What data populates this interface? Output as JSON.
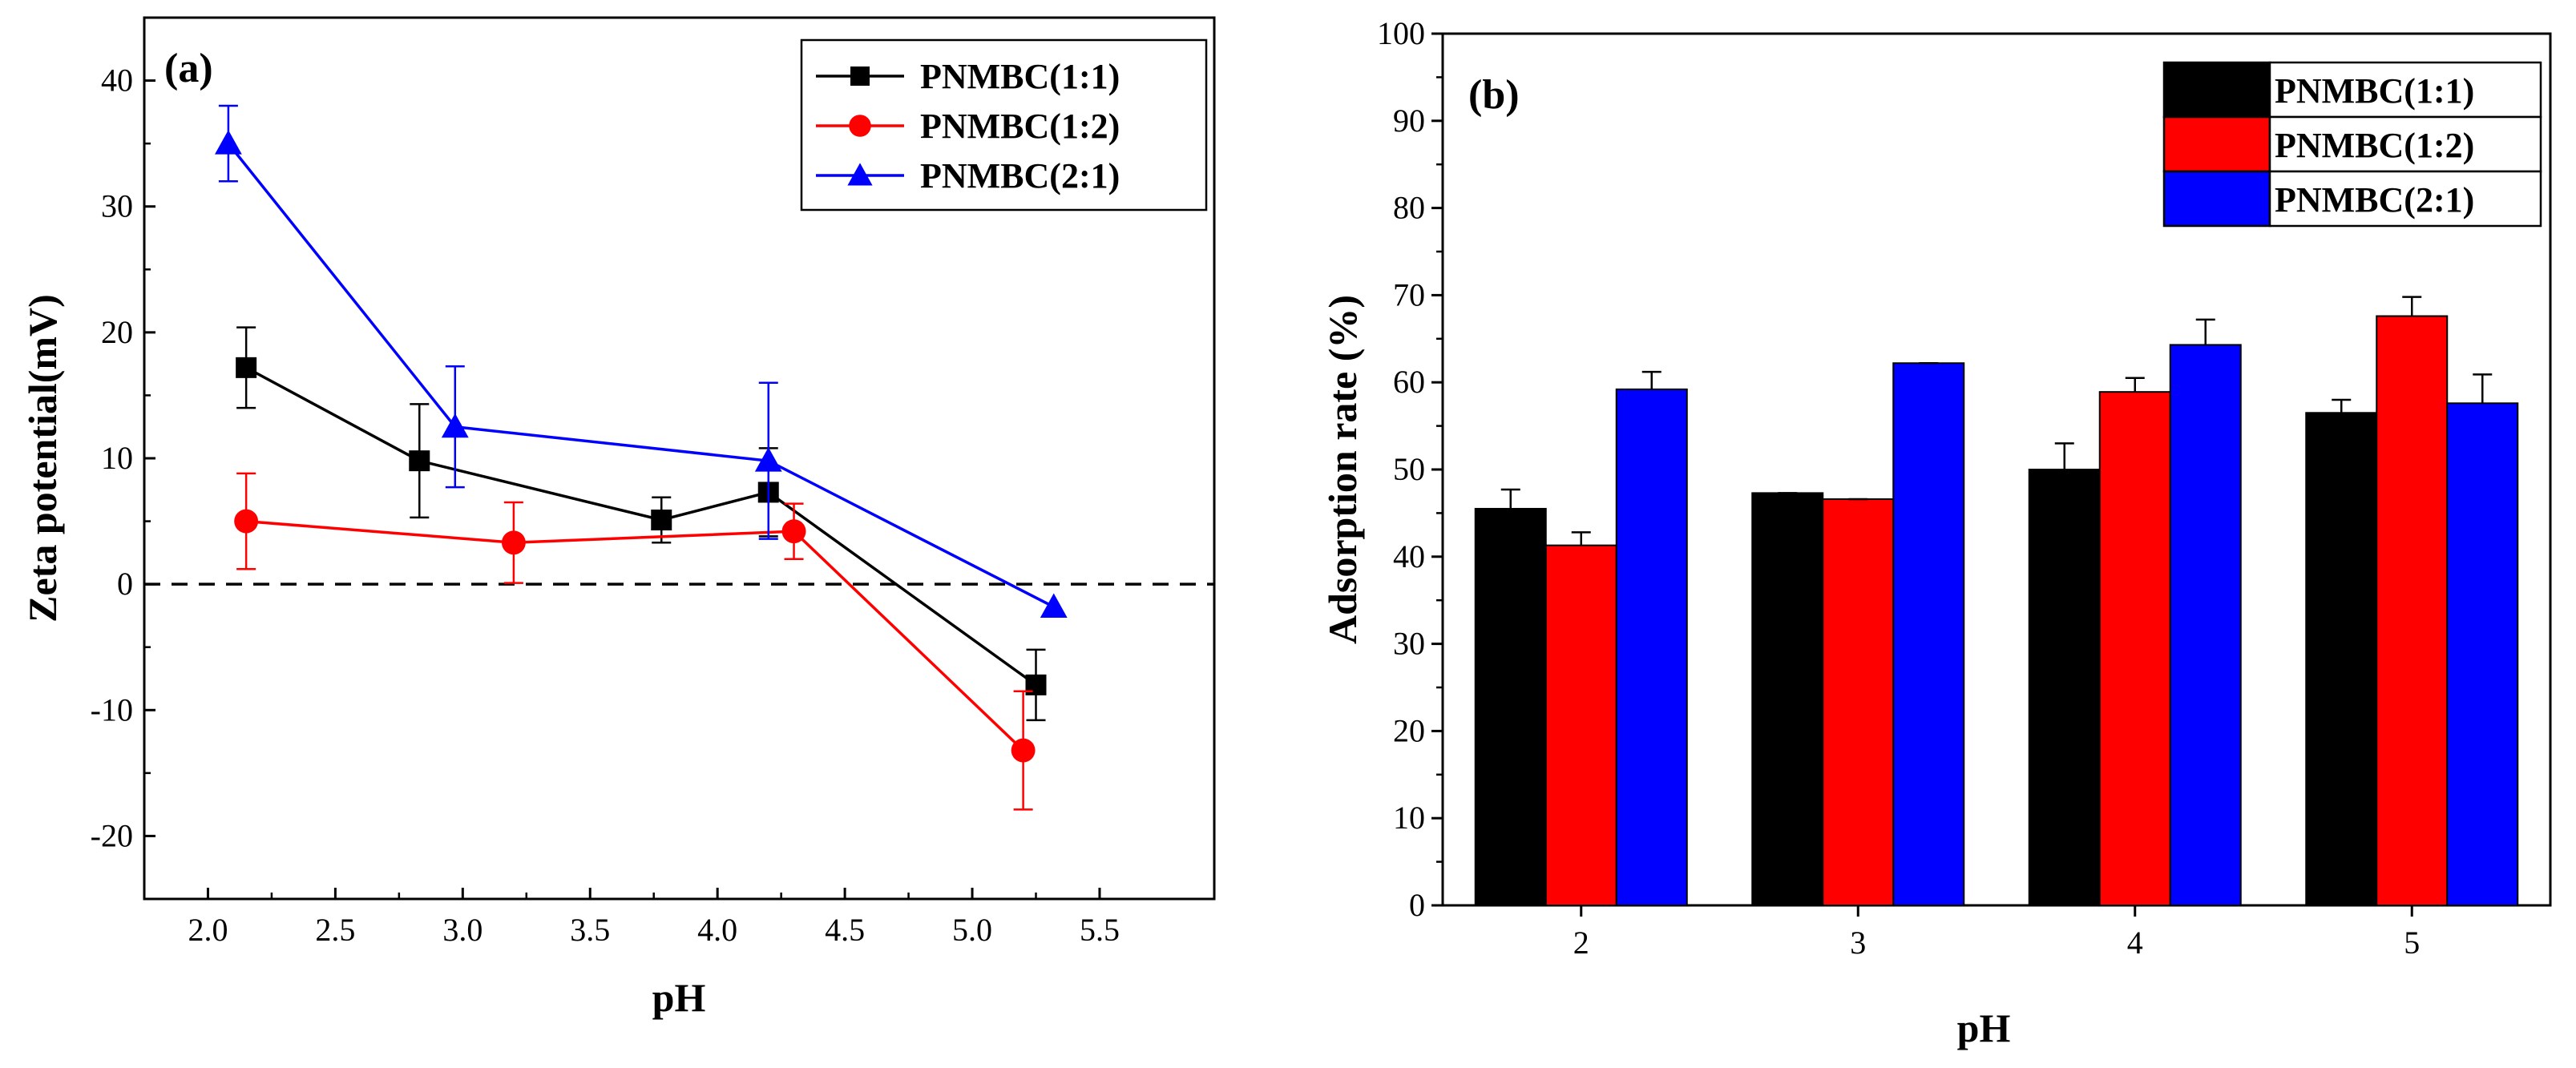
{
  "chart_data": [
    {
      "type": "line",
      "panel_label": "(a)",
      "xlabel": "pH",
      "ylabel": "Zeta potential(mV)",
      "xlim": [
        1.75,
        5.95
      ],
      "ylim": [
        -25,
        45
      ],
      "xticks": [
        2.0,
        2.5,
        3.0,
        3.5,
        4.0,
        4.5,
        5.0,
        5.5
      ],
      "xtick_labels": [
        "2.0",
        "2.5",
        "3.0",
        "3.5",
        "4.0",
        "4.5",
        "5.0",
        "5.5"
      ],
      "yticks": [
        -20,
        -10,
        0,
        10,
        20,
        30,
        40
      ],
      "ytick_labels": [
        "-20",
        "-10",
        "0",
        "10",
        "20",
        "30",
        "40"
      ],
      "reference_line": {
        "y": 0,
        "style": "dashed"
      },
      "legend_position": "top-right",
      "series": [
        {
          "name": "PNMBC(1:1)",
          "color": "#000000",
          "marker": "square",
          "points": [
            {
              "x": 2.15,
              "y": 17.2,
              "err": 3.2
            },
            {
              "x": 2.83,
              "y": 9.8,
              "err": 4.5
            },
            {
              "x": 3.78,
              "y": 5.1,
              "err": 1.8
            },
            {
              "x": 4.2,
              "y": 7.3,
              "err": 3.5
            },
            {
              "x": 5.25,
              "y": -8.0,
              "err": 2.8
            }
          ]
        },
        {
          "name": "PNMBC(1:2)",
          "color": "#ff0000",
          "marker": "circle",
          "points": [
            {
              "x": 2.15,
              "y": 5.0,
              "err": 3.8
            },
            {
              "x": 3.2,
              "y": 3.3,
              "err": 3.2
            },
            {
              "x": 4.3,
              "y": 4.2,
              "err": 2.2
            },
            {
              "x": 5.2,
              "y": -13.2,
              "err": 4.7
            }
          ]
        },
        {
          "name": "PNMBC(2:1)",
          "color": "#0000ff",
          "marker": "triangle",
          "points": [
            {
              "x": 2.08,
              "y": 35.0,
              "err": 3.0
            },
            {
              "x": 2.97,
              "y": 12.5,
              "err": 4.8
            },
            {
              "x": 4.2,
              "y": 9.8,
              "err": 6.2
            },
            {
              "x": 5.32,
              "y": -1.8,
              "err": 0
            }
          ]
        }
      ]
    },
    {
      "type": "bar",
      "panel_label": "(b)",
      "xlabel": "pH",
      "ylabel": "Adsorption rate (%)",
      "ylim": [
        0,
        100
      ],
      "yticks": [
        0,
        10,
        20,
        30,
        40,
        50,
        60,
        70,
        80,
        90,
        100
      ],
      "ytick_labels": [
        "0",
        "10",
        "20",
        "30",
        "40",
        "50",
        "60",
        "70",
        "80",
        "90",
        "100"
      ],
      "categories": [
        "2",
        "3",
        "4",
        "5"
      ],
      "legend_position": "top-right",
      "series": [
        {
          "name": "PNMBC(1:1)",
          "color": "#000000",
          "values": [
            45.5,
            47.3,
            50.0,
            56.5
          ],
          "errors": [
            2.2,
            0,
            3.0,
            1.5
          ]
        },
        {
          "name": "PNMBC(1:2)",
          "color": "#ff0000",
          "values": [
            41.3,
            46.6,
            58.9,
            67.6
          ],
          "errors": [
            1.5,
            0,
            1.6,
            2.2
          ]
        },
        {
          "name": "PNMBC(2:1)",
          "color": "#0000ff",
          "values": [
            59.2,
            62.2,
            64.3,
            57.6
          ],
          "errors": [
            2.0,
            0,
            2.9,
            3.3
          ]
        }
      ]
    }
  ]
}
